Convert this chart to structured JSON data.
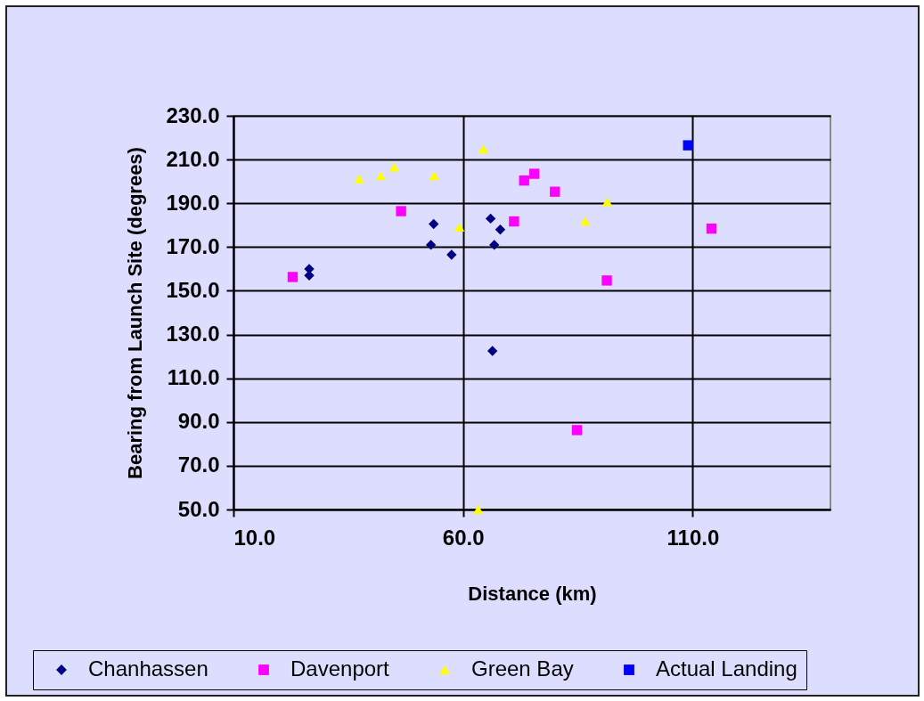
{
  "chart_data": {
    "type": "scatter",
    "xlabel": "Distance (km)",
    "ylabel": "Bearing from Launch Site (degrees)",
    "xlim": [
      10,
      140
    ],
    "ylim": [
      50,
      230
    ],
    "xticks": [
      {
        "value": 10,
        "label": "10.0"
      },
      {
        "value": 60,
        "label": "60.0"
      },
      {
        "value": 110,
        "label": "110.0"
      }
    ],
    "yticks": [
      {
        "value": 50,
        "label": "50.0"
      },
      {
        "value": 70,
        "label": "70.0"
      },
      {
        "value": 90,
        "label": "90.0"
      },
      {
        "value": 110,
        "label": "110.0"
      },
      {
        "value": 130,
        "label": "130.0"
      },
      {
        "value": 150,
        "label": "150.0"
      },
      {
        "value": 170,
        "label": "170.0"
      },
      {
        "value": 190,
        "label": "190.0"
      },
      {
        "value": 210,
        "label": "210.0"
      },
      {
        "value": 230,
        "label": "230.0"
      }
    ],
    "grid": true,
    "legend": "bottom",
    "series": [
      {
        "name": "Chanhassen",
        "color": "#000080",
        "marker": "diamond",
        "x": [
          26.5,
          26.5,
          53.6,
          53,
          57.5,
          66,
          68.1,
          66.8,
          66.4
        ],
        "values": [
          160,
          157,
          180.5,
          171,
          166.5,
          183,
          178,
          171,
          122.5
        ]
      },
      {
        "name": "Davenport",
        "color": "#ff00ff",
        "marker": "square",
        "x": [
          22.9,
          46.5,
          73.3,
          75.5,
          80,
          71.1,
          114.1,
          91.3,
          84.8
        ],
        "values": [
          156.3,
          186.4,
          200.4,
          203.5,
          195.3,
          181.7,
          178.4,
          154.7,
          86.3
        ]
      },
      {
        "name": "Green Bay",
        "color": "#ffff00",
        "marker": "triangle",
        "x": [
          37.4,
          42.1,
          45,
          53.7,
          59.2,
          64.4,
          91.4,
          86.6,
          63.3
        ],
        "values": [
          201.2,
          202.6,
          206.5,
          202.6,
          179.1,
          214.8,
          190.7,
          181.8,
          50
        ]
      },
      {
        "name": "Actual Landing",
        "color": "#0000ff",
        "marker": "square",
        "x": [
          109
        ],
        "values": [
          216.5
        ]
      }
    ]
  }
}
